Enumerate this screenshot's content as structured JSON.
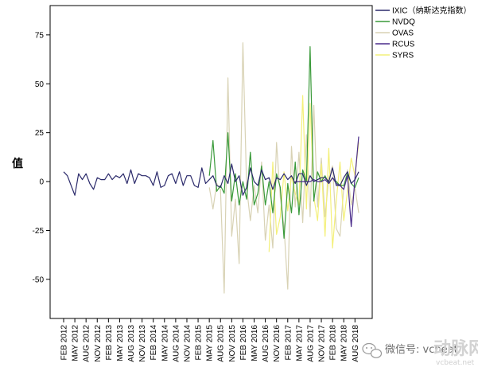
{
  "chart_data": {
    "type": "line",
    "title": "",
    "xlabel": "",
    "ylabel": "值",
    "ylim": [
      -70,
      90
    ],
    "yticks": [
      -50,
      -25,
      0,
      25,
      50,
      75
    ],
    "grid": false,
    "legend": "right",
    "x": [
      "FEB 2012",
      "MAR 2012",
      "APR 2012",
      "MAY 2012",
      "JUN 2012",
      "JUL 2012",
      "AUG 2012",
      "SEP 2012",
      "OCT 2012",
      "NOV 2012",
      "DEC 2012",
      "JAN 2013",
      "FEB 2013",
      "MAR 2013",
      "APR 2013",
      "MAY 2013",
      "JUN 2013",
      "JUL 2013",
      "AUG 2013",
      "SEP 2013",
      "OCT 2013",
      "NOV 2013",
      "DEC 2013",
      "JAN 2014",
      "FEB 2014",
      "MAR 2014",
      "APR 2014",
      "MAY 2014",
      "JUN 2014",
      "JUL 2014",
      "AUG 2014",
      "SEP 2014",
      "OCT 2014",
      "NOV 2014",
      "DEC 2014",
      "JAN 2015",
      "FEB 2015",
      "MAR 2015",
      "APR 2015",
      "MAY 2015",
      "JUN 2015",
      "JUL 2015",
      "AUG 2015",
      "SEP 2015",
      "OCT 2015",
      "NOV 2015",
      "DEC 2015",
      "JAN 2016",
      "FEB 2016",
      "MAR 2016",
      "APR 2016",
      "MAY 2016",
      "JUN 2016",
      "JUL 2016",
      "AUG 2016",
      "SEP 2016",
      "OCT 2016",
      "NOV 2016",
      "DEC 2016",
      "JAN 2017",
      "FEB 2017",
      "MAR 2017",
      "APR 2017",
      "MAY 2017",
      "JUN 2017",
      "JUL 2017",
      "AUG 2017",
      "SEP 2017",
      "OCT 2017",
      "NOV 2017",
      "DEC 2017",
      "JAN 2018",
      "FEB 2018",
      "MAR 2018",
      "APR 2018",
      "MAY 2018",
      "JUN 2018",
      "JUL 2018",
      "AUG 2018",
      "SEP 2018"
    ],
    "xtick_labels": [
      "FEB 2012",
      "MAY 2012",
      "AUG 2012",
      "NOV 2012",
      "FEB 2013",
      "MAY 2013",
      "AUG 2013",
      "NOV 2013",
      "FEB 2014",
      "MAY 2014",
      "AUG 2014",
      "NOV 2014",
      "FEB 2015",
      "MAY 2015",
      "AUG 2015",
      "NOV 2015",
      "FEB 2016",
      "MAY 2016",
      "AUG 2016",
      "NOV 2016",
      "FEB 2017",
      "MAY 2017",
      "AUG 2017",
      "NOV 2017",
      "FEB 2018",
      "MAY 2018",
      "AUG 2018"
    ],
    "series": [
      {
        "name": "IXIC（纳斯达克指数）",
        "color": "#2b2a6b",
        "values": [
          5,
          3,
          -2,
          -7,
          4,
          1,
          4,
          -1,
          -4,
          2,
          1,
          1,
          4,
          1,
          3,
          2,
          4,
          -1,
          6,
          -1,
          4,
          3,
          3,
          2,
          -2,
          5,
          -3,
          -2,
          3,
          4,
          -1,
          5,
          -2,
          3,
          3,
          -2,
          -3,
          7,
          -1,
          1,
          3,
          -2,
          -3,
          3,
          -1,
          9,
          0,
          3,
          -7,
          -3,
          7,
          0,
          -2,
          6,
          1,
          2,
          -4,
          2,
          1,
          4,
          1,
          3,
          -1,
          4,
          4,
          -2,
          3,
          0,
          1,
          2,
          2,
          0,
          7,
          -2,
          -2,
          2,
          5,
          -1,
          1,
          5
        ]
      },
      {
        "name": "NVDQ",
        "color": "#3a9a3a",
        "values": [
          null,
          null,
          null,
          null,
          null,
          null,
          null,
          null,
          null,
          null,
          null,
          null,
          null,
          null,
          null,
          null,
          null,
          null,
          null,
          null,
          null,
          null,
          null,
          null,
          null,
          null,
          null,
          null,
          null,
          null,
          null,
          null,
          null,
          null,
          null,
          null,
          null,
          null,
          null,
          3,
          21,
          -5,
          -2,
          -6,
          25,
          -10,
          4,
          -12,
          0,
          -9,
          15,
          -12,
          -6,
          8,
          -12,
          0,
          -16,
          4,
          -3,
          -29,
          -1,
          -16,
          10,
          -17,
          6,
          0,
          69,
          -10,
          5,
          0,
          3,
          -1,
          2,
          0,
          -2,
          -2,
          4,
          -1,
          -3,
          2
        ]
      },
      {
        "name": "OVAS",
        "color": "#d8d2b4",
        "values": [
          null,
          null,
          null,
          null,
          null,
          null,
          null,
          null,
          null,
          null,
          null,
          null,
          null,
          null,
          null,
          null,
          null,
          null,
          null,
          null,
          null,
          null,
          null,
          null,
          null,
          null,
          null,
          null,
          null,
          null,
          null,
          null,
          null,
          null,
          null,
          null,
          null,
          null,
          null,
          -3,
          -14,
          -1,
          -4,
          -57,
          53,
          -28,
          -9,
          -42,
          71,
          -3,
          -20,
          -2,
          -16,
          10,
          -30,
          -12,
          -34,
          20,
          -8,
          -23,
          -55,
          18,
          -13,
          15,
          -21,
          24,
          -18,
          39,
          -13,
          12,
          -18,
          2,
          8,
          -24,
          -28,
          -3,
          6,
          -12,
          -3,
          -16
        ]
      },
      {
        "name": "RCUS",
        "color": "#4a2c8a",
        "values": [
          null,
          null,
          null,
          null,
          null,
          null,
          null,
          null,
          null,
          null,
          null,
          null,
          null,
          null,
          null,
          null,
          null,
          null,
          null,
          null,
          null,
          null,
          null,
          null,
          null,
          null,
          null,
          null,
          null,
          null,
          null,
          null,
          null,
          null,
          null,
          null,
          null,
          null,
          null,
          null,
          null,
          null,
          null,
          null,
          null,
          null,
          null,
          null,
          null,
          null,
          null,
          null,
          null,
          null,
          null,
          null,
          null,
          null,
          null,
          null,
          null,
          null,
          0,
          0,
          0,
          0,
          0,
          1,
          0,
          0,
          1,
          -1,
          2,
          -1,
          -2,
          -4,
          3,
          -23,
          2,
          23
        ]
      },
      {
        "name": "SYRS",
        "color": "#f4f07a",
        "values": [
          null,
          null,
          null,
          null,
          null,
          null,
          null,
          null,
          null,
          null,
          null,
          null,
          null,
          null,
          null,
          null,
          null,
          null,
          null,
          null,
          null,
          null,
          null,
          null,
          null,
          null,
          null,
          null,
          null,
          null,
          null,
          null,
          null,
          null,
          null,
          null,
          null,
          null,
          null,
          null,
          null,
          null,
          null,
          null,
          null,
          null,
          null,
          null,
          null,
          null,
          null,
          null,
          null,
          null,
          null,
          -36,
          10,
          -27,
          -18,
          5,
          -15,
          3,
          -6,
          -12,
          44,
          -14,
          40,
          -8,
          -20,
          9,
          -28,
          17,
          -34,
          -10,
          10,
          -20,
          -5,
          12,
          3,
          20
        ]
      }
    ]
  },
  "watermark": {
    "wechat_label": "微信号: vcbeat",
    "logo_text": "动脉网",
    "url": "vcbeat.net"
  }
}
